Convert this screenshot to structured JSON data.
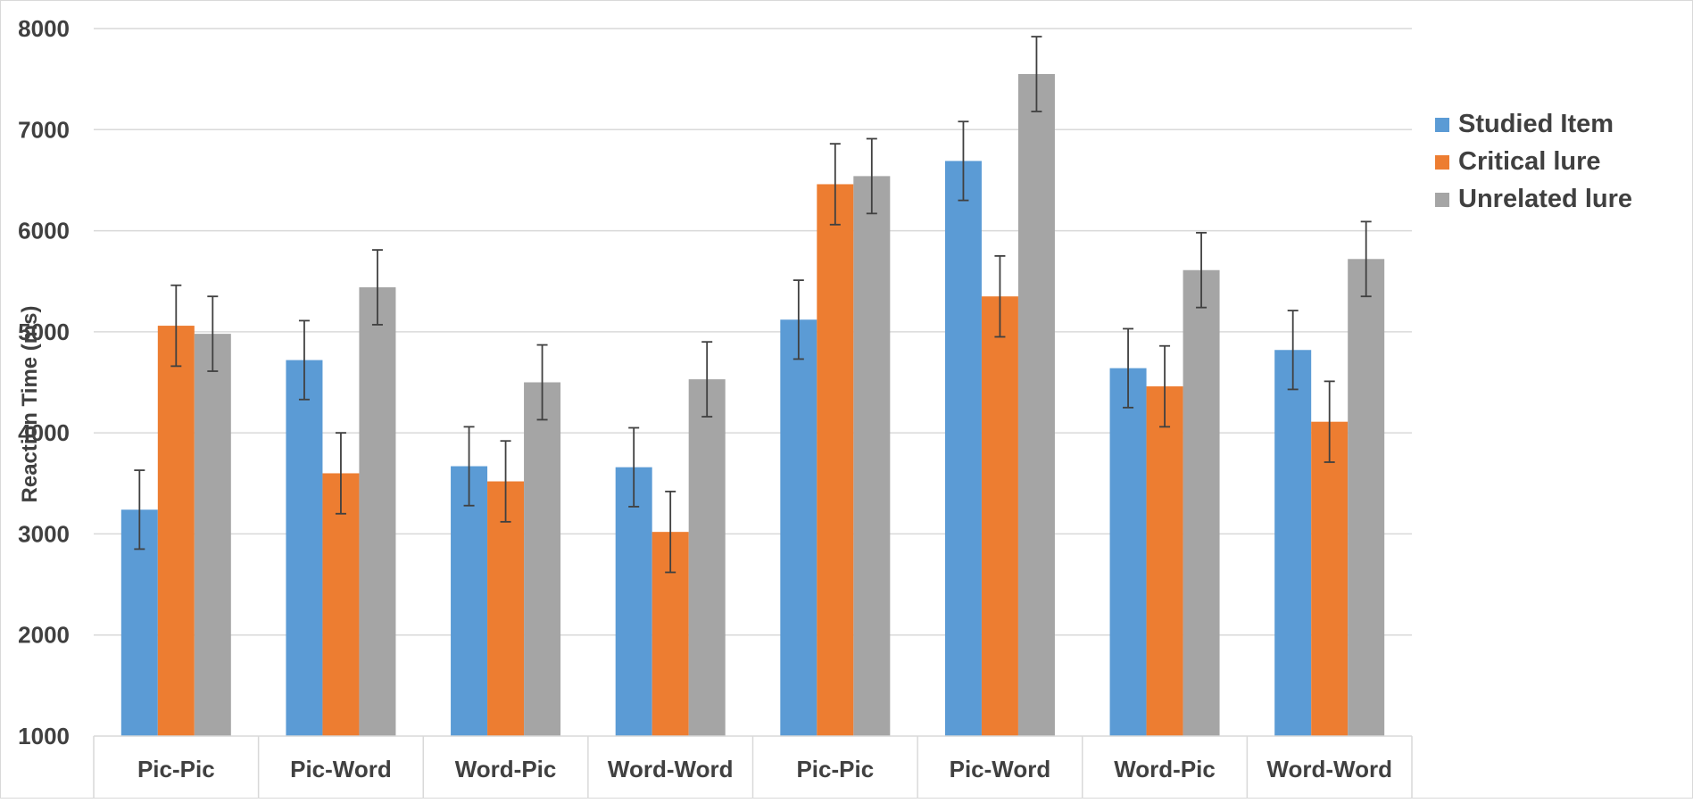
{
  "chart_data": {
    "type": "bar",
    "ylabel": "Reaction Time (ms)",
    "ylim": [
      1000,
      8000
    ],
    "yticks": [
      1000,
      2000,
      3000,
      4000,
      5000,
      6000,
      7000,
      8000
    ],
    "categories": [
      "Pic-Pic",
      "Pic-Word",
      "Word-Pic",
      "Word-Word",
      "Pic-Pic",
      "Pic-Word",
      "Word-Pic",
      "Word-Word"
    ],
    "grid": true,
    "legend_position": "right",
    "series": [
      {
        "name": "Studied Item",
        "color": "#5B9BD5",
        "values": [
          3240,
          4720,
          3670,
          3660,
          5120,
          6690,
          4640,
          4820
        ],
        "error": [
          390,
          390,
          390,
          390,
          390,
          390,
          390,
          390
        ]
      },
      {
        "name": "Critical lure",
        "color": "#ED7D31",
        "values": [
          5060,
          3600,
          3520,
          3020,
          6460,
          5350,
          4460,
          4110
        ],
        "error": [
          400,
          400,
          400,
          400,
          400,
          400,
          400,
          400
        ]
      },
      {
        "name": "Unrelated lure",
        "color": "#A5A5A5",
        "values": [
          4980,
          5440,
          4500,
          4530,
          6540,
          7550,
          5610,
          5720
        ],
        "error": [
          370,
          370,
          370,
          370,
          370,
          370,
          370,
          370
        ]
      }
    ]
  }
}
